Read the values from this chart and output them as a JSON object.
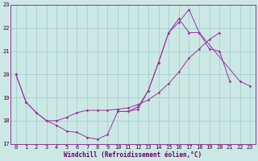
{
  "xlabel": "Windchill (Refroidissement éolien,°C)",
  "background_color": "#cce8e4",
  "line_color": "#993399",
  "grid_color": "#99cccc",
  "spine_color": "#993399",
  "label_color": "#660066",
  "tick_color": "#330033",
  "xlim": [
    -0.5,
    23.5
  ],
  "ylim": [
    17,
    23
  ],
  "yticks": [
    17,
    18,
    19,
    20,
    21,
    22,
    23
  ],
  "xticks": [
    0,
    1,
    2,
    3,
    4,
    5,
    6,
    7,
    8,
    9,
    10,
    11,
    12,
    13,
    14,
    15,
    16,
    17,
    18,
    19,
    20,
    21,
    22,
    23
  ],
  "line1_x": [
    0,
    1,
    2,
    3,
    4,
    5,
    6,
    7,
    8,
    9,
    10,
    11,
    12,
    13,
    14,
    15,
    16,
    17,
    18,
    19,
    20,
    21,
    22,
    23
  ],
  "line1_y": [
    20.0,
    18.8,
    18.35,
    18.0,
    17.8,
    17.55,
    17.5,
    17.28,
    17.2,
    17.4,
    18.4,
    18.4,
    18.5,
    19.3,
    20.5,
    21.8,
    22.25,
    22.8,
    21.8,
    21.1,
    21.0,
    19.7,
    null,
    null
  ],
  "line2_x": [
    0,
    1,
    2,
    3,
    4,
    5,
    6,
    7,
    8,
    9,
    10,
    11,
    12,
    13,
    14,
    15,
    16,
    17,
    18,
    19,
    20,
    21,
    22,
    23
  ],
  "line2_y": [
    20.0,
    18.8,
    18.35,
    18.0,
    18.0,
    18.15,
    18.35,
    18.45,
    18.45,
    18.45,
    18.5,
    18.55,
    18.7,
    18.9,
    19.2,
    19.6,
    20.1,
    20.7,
    21.1,
    21.5,
    21.8,
    null,
    null,
    null
  ],
  "line3_x": [
    0,
    1,
    2,
    3,
    4,
    5,
    6,
    7,
    8,
    9,
    10,
    11,
    12,
    13,
    14,
    15,
    16,
    17,
    18,
    19,
    20,
    21,
    22,
    23
  ],
  "line3_y": [
    null,
    null,
    null,
    null,
    null,
    null,
    null,
    null,
    null,
    null,
    18.4,
    18.4,
    18.6,
    19.3,
    20.5,
    21.8,
    22.4,
    21.8,
    21.8,
    null,
    null,
    null,
    19.7,
    19.5
  ]
}
